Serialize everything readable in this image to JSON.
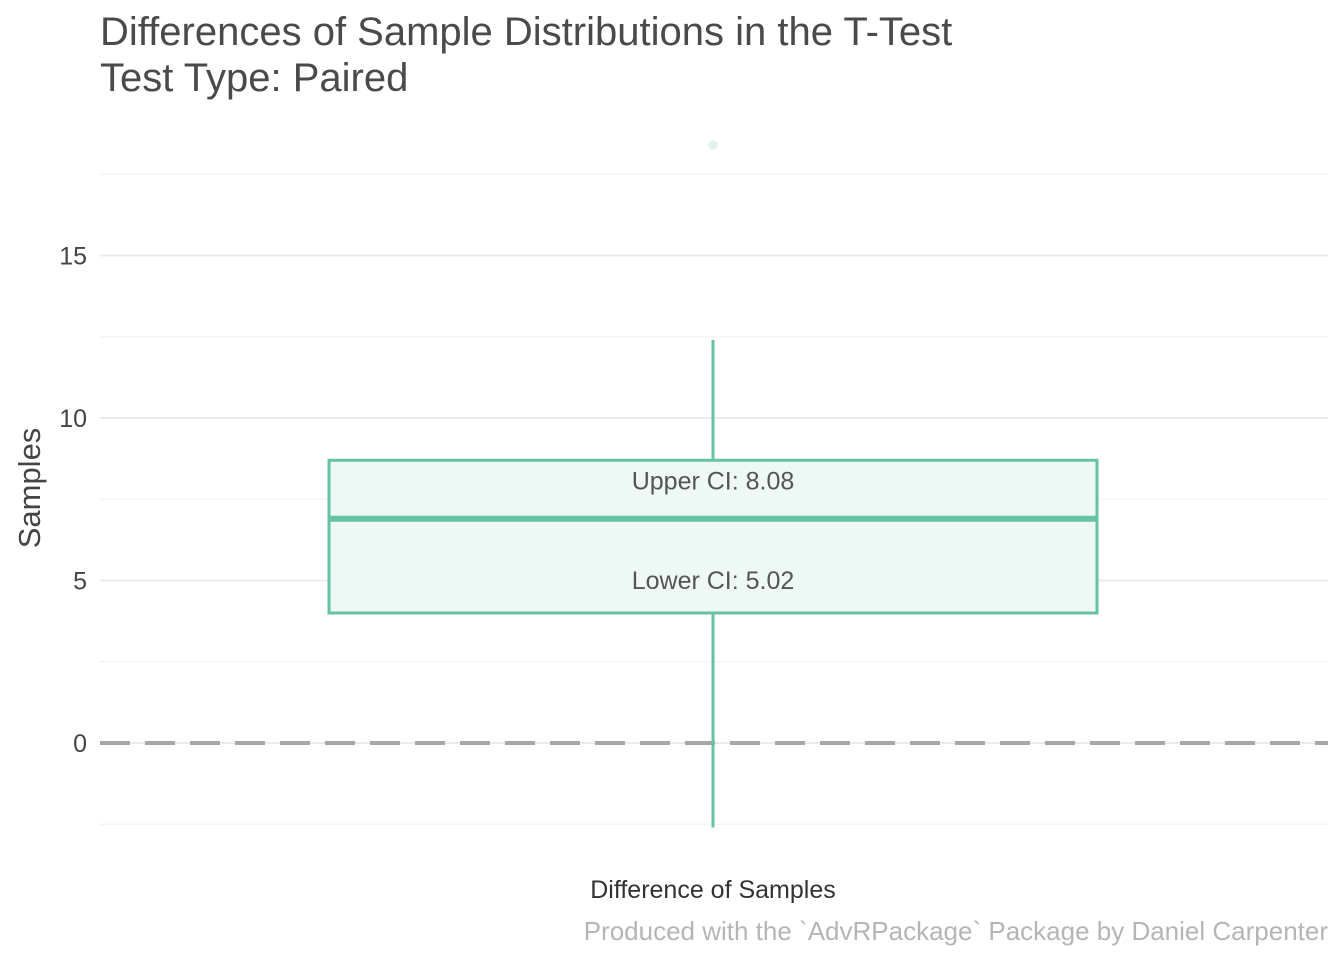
{
  "chart_data": {
    "type": "boxplot",
    "title": "Differences of Sample Distributions in the T-Test",
    "subtitle": "Test Type: Paired",
    "xlabel": "",
    "ylabel": "Samples",
    "caption": "Produced with the `AdvRPackage` Package by Daniel Carpenter",
    "categories": [
      "Difference of Samples"
    ],
    "ylim": [
      -2.6,
      18.4
    ],
    "yticks": [
      0,
      5,
      10,
      15
    ],
    "ytick_labels": [
      "0",
      "5",
      "10",
      "15"
    ],
    "minor_gridlines": [
      -2.5,
      2.5,
      7.5,
      12.5,
      17.5
    ],
    "grid": true,
    "legend": "none",
    "box": {
      "whisker_low": -2.6,
      "q1": 4.0,
      "median": 6.9,
      "q3": 8.7,
      "whisker_high": 12.4,
      "outliers": [
        18.4
      ]
    },
    "reference_line": {
      "y": 0,
      "style": "dashed"
    },
    "annotations": [
      {
        "text": "Upper CI: 8.08",
        "y": 8.08
      },
      {
        "text": "Lower CI: 5.02",
        "y": 5.02
      }
    ],
    "colors": {
      "box_stroke": "#66c2a5",
      "box_fill": "#eef8f4",
      "outlier": "#e3f3ee",
      "grid": "#ebebeb",
      "reference_line": "#a6a6a6"
    }
  }
}
